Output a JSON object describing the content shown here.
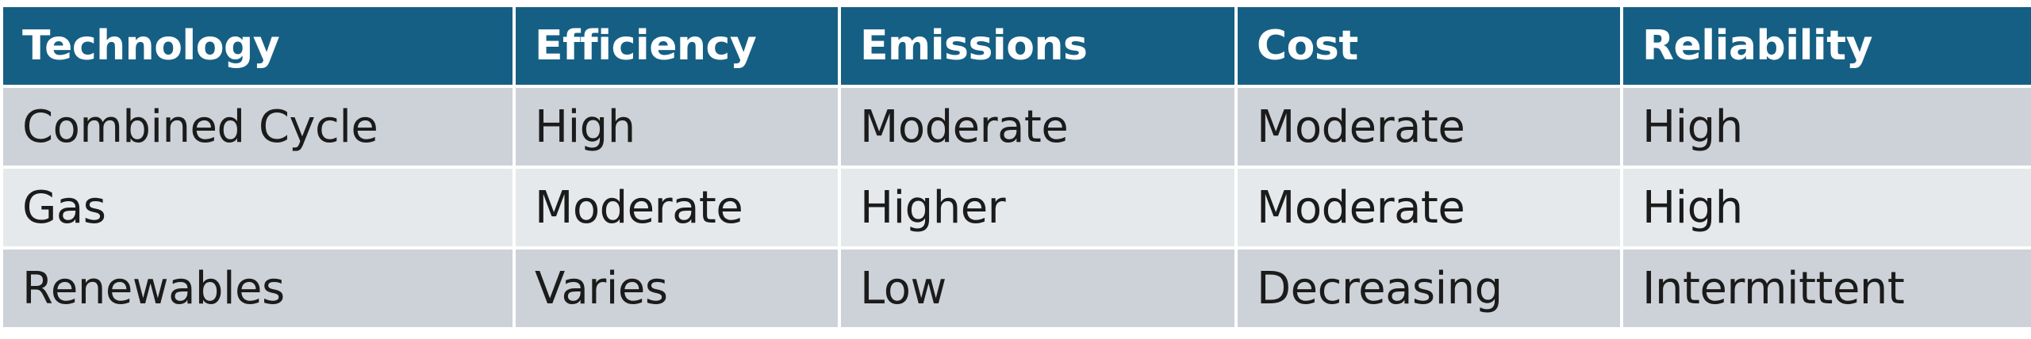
{
  "table": {
    "headers": [
      "Technology",
      "Efficiency",
      "Emissions",
      "Cost",
      "Reliability"
    ],
    "rows": [
      [
        "Combined Cycle",
        "High",
        "Moderate",
        "Moderate",
        "High"
      ],
      [
        "Gas",
        "Moderate",
        "Higher",
        "Moderate",
        "High"
      ],
      [
        "Renewables",
        "Varies",
        "Low",
        "Decreasing",
        "Intermittent"
      ]
    ]
  },
  "colors": {
    "header_bg": "#165F84",
    "header_text": "#FFFFFF",
    "row_odd_bg": "#CDD2D8",
    "row_even_bg": "#E6E9EC",
    "cell_text": "#1B1B1B",
    "grid_lines": "#FFFFFF"
  }
}
